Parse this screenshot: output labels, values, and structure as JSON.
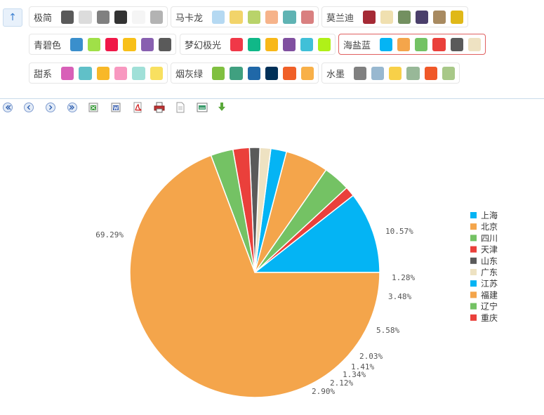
{
  "nav": {
    "up_symbol": "↑"
  },
  "themes": [
    {
      "name": "极简",
      "colors": [
        "#5a5a5a",
        "#dcdcdc",
        "#808080",
        "#333333",
        "#f5f5f5",
        "#b3b3b3"
      ],
      "selected": false
    },
    {
      "name": "马卡龙",
      "colors": [
        "#b5d9f2",
        "#f2d46a",
        "#b9d36a",
        "#f6b38a",
        "#5fb3b3",
        "#d98080"
      ],
      "selected": false
    },
    {
      "name": "莫兰迪",
      "colors": [
        "#a52a35",
        "#f0e0b0",
        "#739060",
        "#4a3f6b",
        "#a88a60",
        "#e0b818"
      ],
      "selected": false
    },
    {
      "name": "青碧色",
      "colors": [
        "#3a8fcc",
        "#a0e048",
        "#f01848",
        "#f8c018",
        "#8860b0",
        "#5a5a5a"
      ],
      "selected": false
    },
    {
      "name": "梦幻极光",
      "colors": [
        "#f03848",
        "#10b888",
        "#f8b818",
        "#8050a0",
        "#40c0d8",
        "#b0f018"
      ],
      "selected": false
    },
    {
      "name": "海盐蓝",
      "colors": [
        "#04b4f4",
        "#f4a54b",
        "#74c264",
        "#ea403b",
        "#5a5a5a",
        "#eee2c2"
      ],
      "selected": true
    },
    {
      "name": "甜系",
      "colors": [
        "#d860b8",
        "#60c0c8",
        "#f8b828",
        "#f898c0",
        "#a0e0d8",
        "#f8e060"
      ],
      "selected": false
    },
    {
      "name": "烟灰绿",
      "colors": [
        "#80c040",
        "#40a080",
        "#2068a8",
        "#003058",
        "#f06028",
        "#f8b048"
      ],
      "selected": false
    },
    {
      "name": "水墨",
      "colors": [
        "#808080",
        "#98b8d0",
        "#f8d048",
        "#98b898",
        "#f05828",
        "#a8c888"
      ],
      "selected": false
    }
  ],
  "toolbar": {
    "icons": [
      "first-page-icon",
      "prev-page-icon",
      "next-page-icon",
      "last-page-icon",
      "export-excel-icon",
      "export-word-icon",
      "export-pdf-icon",
      "print-icon",
      "export-text-icon",
      "export-image-icon",
      "download-icon"
    ]
  },
  "chart_data": {
    "type": "pie",
    "title": "",
    "legend_position": "right",
    "start_angle_deg": 0,
    "direction": "clockwise",
    "slices": [
      {
        "name": "上海",
        "value": 10.57,
        "label": "10.57%",
        "color": "#04b4f4"
      },
      {
        "name": "重庆",
        "value": 1.28,
        "label": "1.28%",
        "color": "#ea403b"
      },
      {
        "name": "辽宁",
        "value": 3.48,
        "label": "3.48%",
        "color": "#74c264"
      },
      {
        "name": "福建",
        "value": 5.58,
        "label": "5.58%",
        "color": "#f4a54b"
      },
      {
        "name": "江苏",
        "value": 2.03,
        "label": "2.03%",
        "color": "#04b4f4"
      },
      {
        "name": "广东",
        "value": 1.41,
        "label": "1.41%",
        "color": "#eee2c2"
      },
      {
        "name": "山东",
        "value": 1.34,
        "label": "1.34%",
        "color": "#5a5a5a"
      },
      {
        "name": "天津",
        "value": 2.12,
        "label": "2.12%",
        "color": "#ea403b"
      },
      {
        "name": "四川",
        "value": 2.9,
        "label": "2.90%",
        "color": "#74c264"
      },
      {
        "name": "北京",
        "value": 69.29,
        "label": "69.29%",
        "color": "#f4a54b"
      }
    ],
    "legend": [
      {
        "name": "上海",
        "color": "#04b4f4"
      },
      {
        "name": "北京",
        "color": "#f4a54b"
      },
      {
        "name": "四川",
        "color": "#74c264"
      },
      {
        "name": "天津",
        "color": "#ea403b"
      },
      {
        "name": "山东",
        "color": "#5a5a5a"
      },
      {
        "name": "广东",
        "color": "#eee2c2"
      },
      {
        "name": "江苏",
        "color": "#04b4f4"
      },
      {
        "name": "福建",
        "color": "#f4a54b"
      },
      {
        "name": "辽宁",
        "color": "#74c264"
      },
      {
        "name": "重庆",
        "color": "#ea403b"
      }
    ]
  }
}
